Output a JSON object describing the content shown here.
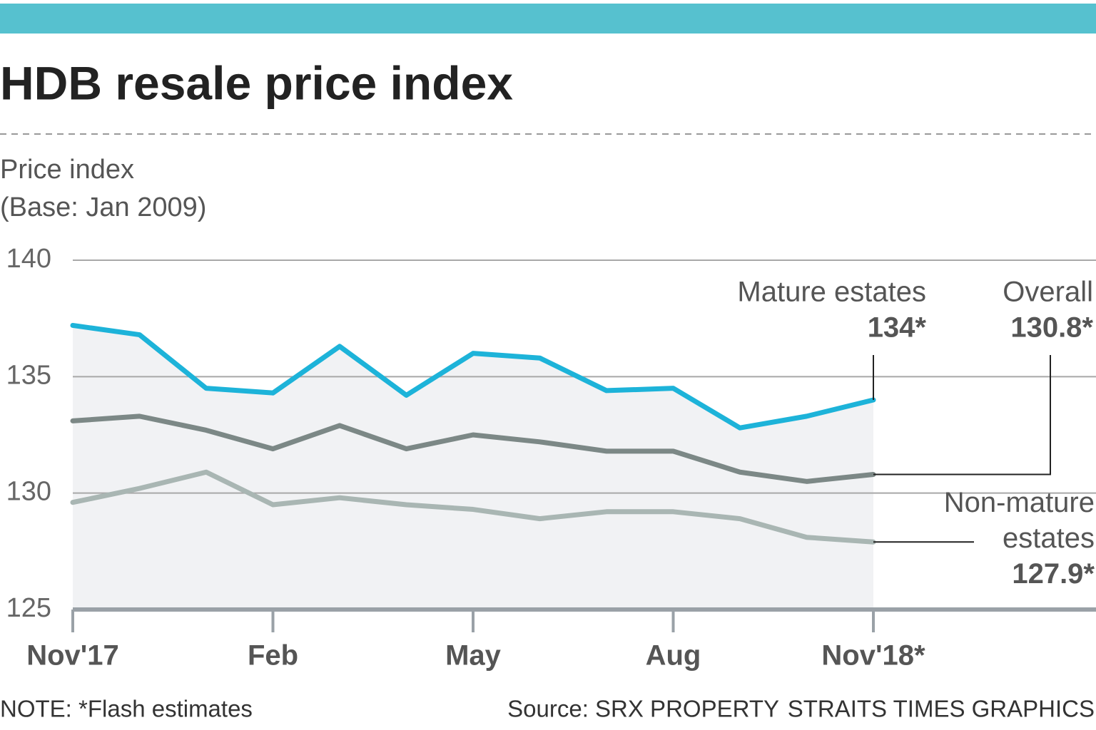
{
  "chart_data": {
    "type": "line",
    "title": "HDB resale price index",
    "ylabel": [
      "Price index",
      "(Base: Jan 2009)"
    ],
    "categories": [
      "Nov'17",
      null,
      null,
      "Feb",
      null,
      null,
      "May",
      null,
      null,
      "Aug",
      null,
      null,
      "Nov'18*"
    ],
    "series": [
      {
        "name": "Mature estates",
        "color": "#1db3d9",
        "values": [
          137.2,
          136.8,
          134.5,
          134.3,
          136.3,
          134.2,
          136.0,
          135.8,
          134.4,
          134.5,
          132.8,
          133.3,
          134.0
        ],
        "value_labels": [
          null,
          null,
          null,
          null,
          null,
          null,
          null,
          null,
          null,
          null,
          null,
          null,
          "134*"
        ]
      },
      {
        "name": "Overall",
        "color": "#7c8886",
        "values": [
          133.1,
          133.3,
          132.7,
          131.9,
          132.9,
          131.9,
          132.5,
          132.2,
          131.8,
          131.8,
          130.9,
          130.5,
          130.8
        ],
        "value_labels": [
          null,
          null,
          null,
          null,
          null,
          null,
          null,
          null,
          null,
          null,
          null,
          null,
          "130.8*"
        ]
      },
      {
        "name": "Non-mature estates",
        "color": "#a9b6b3",
        "values": [
          129.6,
          130.2,
          130.9,
          129.5,
          129.8,
          129.5,
          129.3,
          128.9,
          129.2,
          129.2,
          128.9,
          128.1,
          127.9
        ],
        "value_labels": [
          null,
          null,
          null,
          null,
          null,
          null,
          null,
          null,
          null,
          null,
          null,
          null,
          "127.9*"
        ]
      }
    ],
    "ylim": [
      125,
      140
    ],
    "yticks": [
      125,
      130,
      135,
      140
    ],
    "grid": true,
    "note": "NOTE: *Flash estimates",
    "source": "Source: SRX PROPERTY",
    "credit": "STRAITS TIMES GRAPHICS"
  }
}
